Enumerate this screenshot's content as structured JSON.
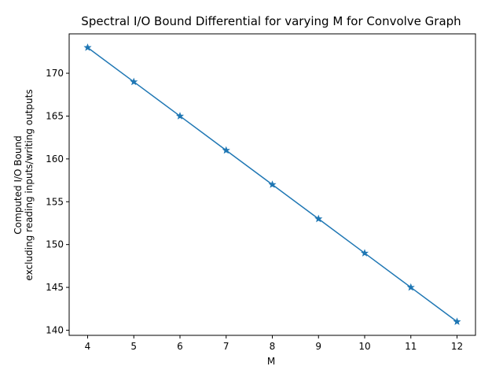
{
  "chart_data": {
    "type": "line",
    "title": "Spectral I/O Bound Differential for varying M for Convolve Graph",
    "xlabel": "M",
    "ylabel_lines": [
      "Computed I/O Bound",
      "excluding reading inputs/writing outputs"
    ],
    "x": [
      4,
      5,
      6,
      7,
      8,
      9,
      10,
      11,
      12
    ],
    "series": [
      {
        "name": "I/O bound",
        "values": [
          173,
          169,
          165,
          161,
          157,
          153,
          149,
          145,
          141
        ],
        "color": "#1f77b4",
        "marker": "star"
      }
    ],
    "xlim": [
      3.6,
      12.4
    ],
    "ylim": [
      139.4,
      174.6
    ],
    "xticks": [
      4,
      5,
      6,
      7,
      8,
      9,
      10,
      11,
      12
    ],
    "yticks": [
      140,
      145,
      150,
      155,
      160,
      165,
      170
    ],
    "grid": false,
    "legend": "none"
  }
}
